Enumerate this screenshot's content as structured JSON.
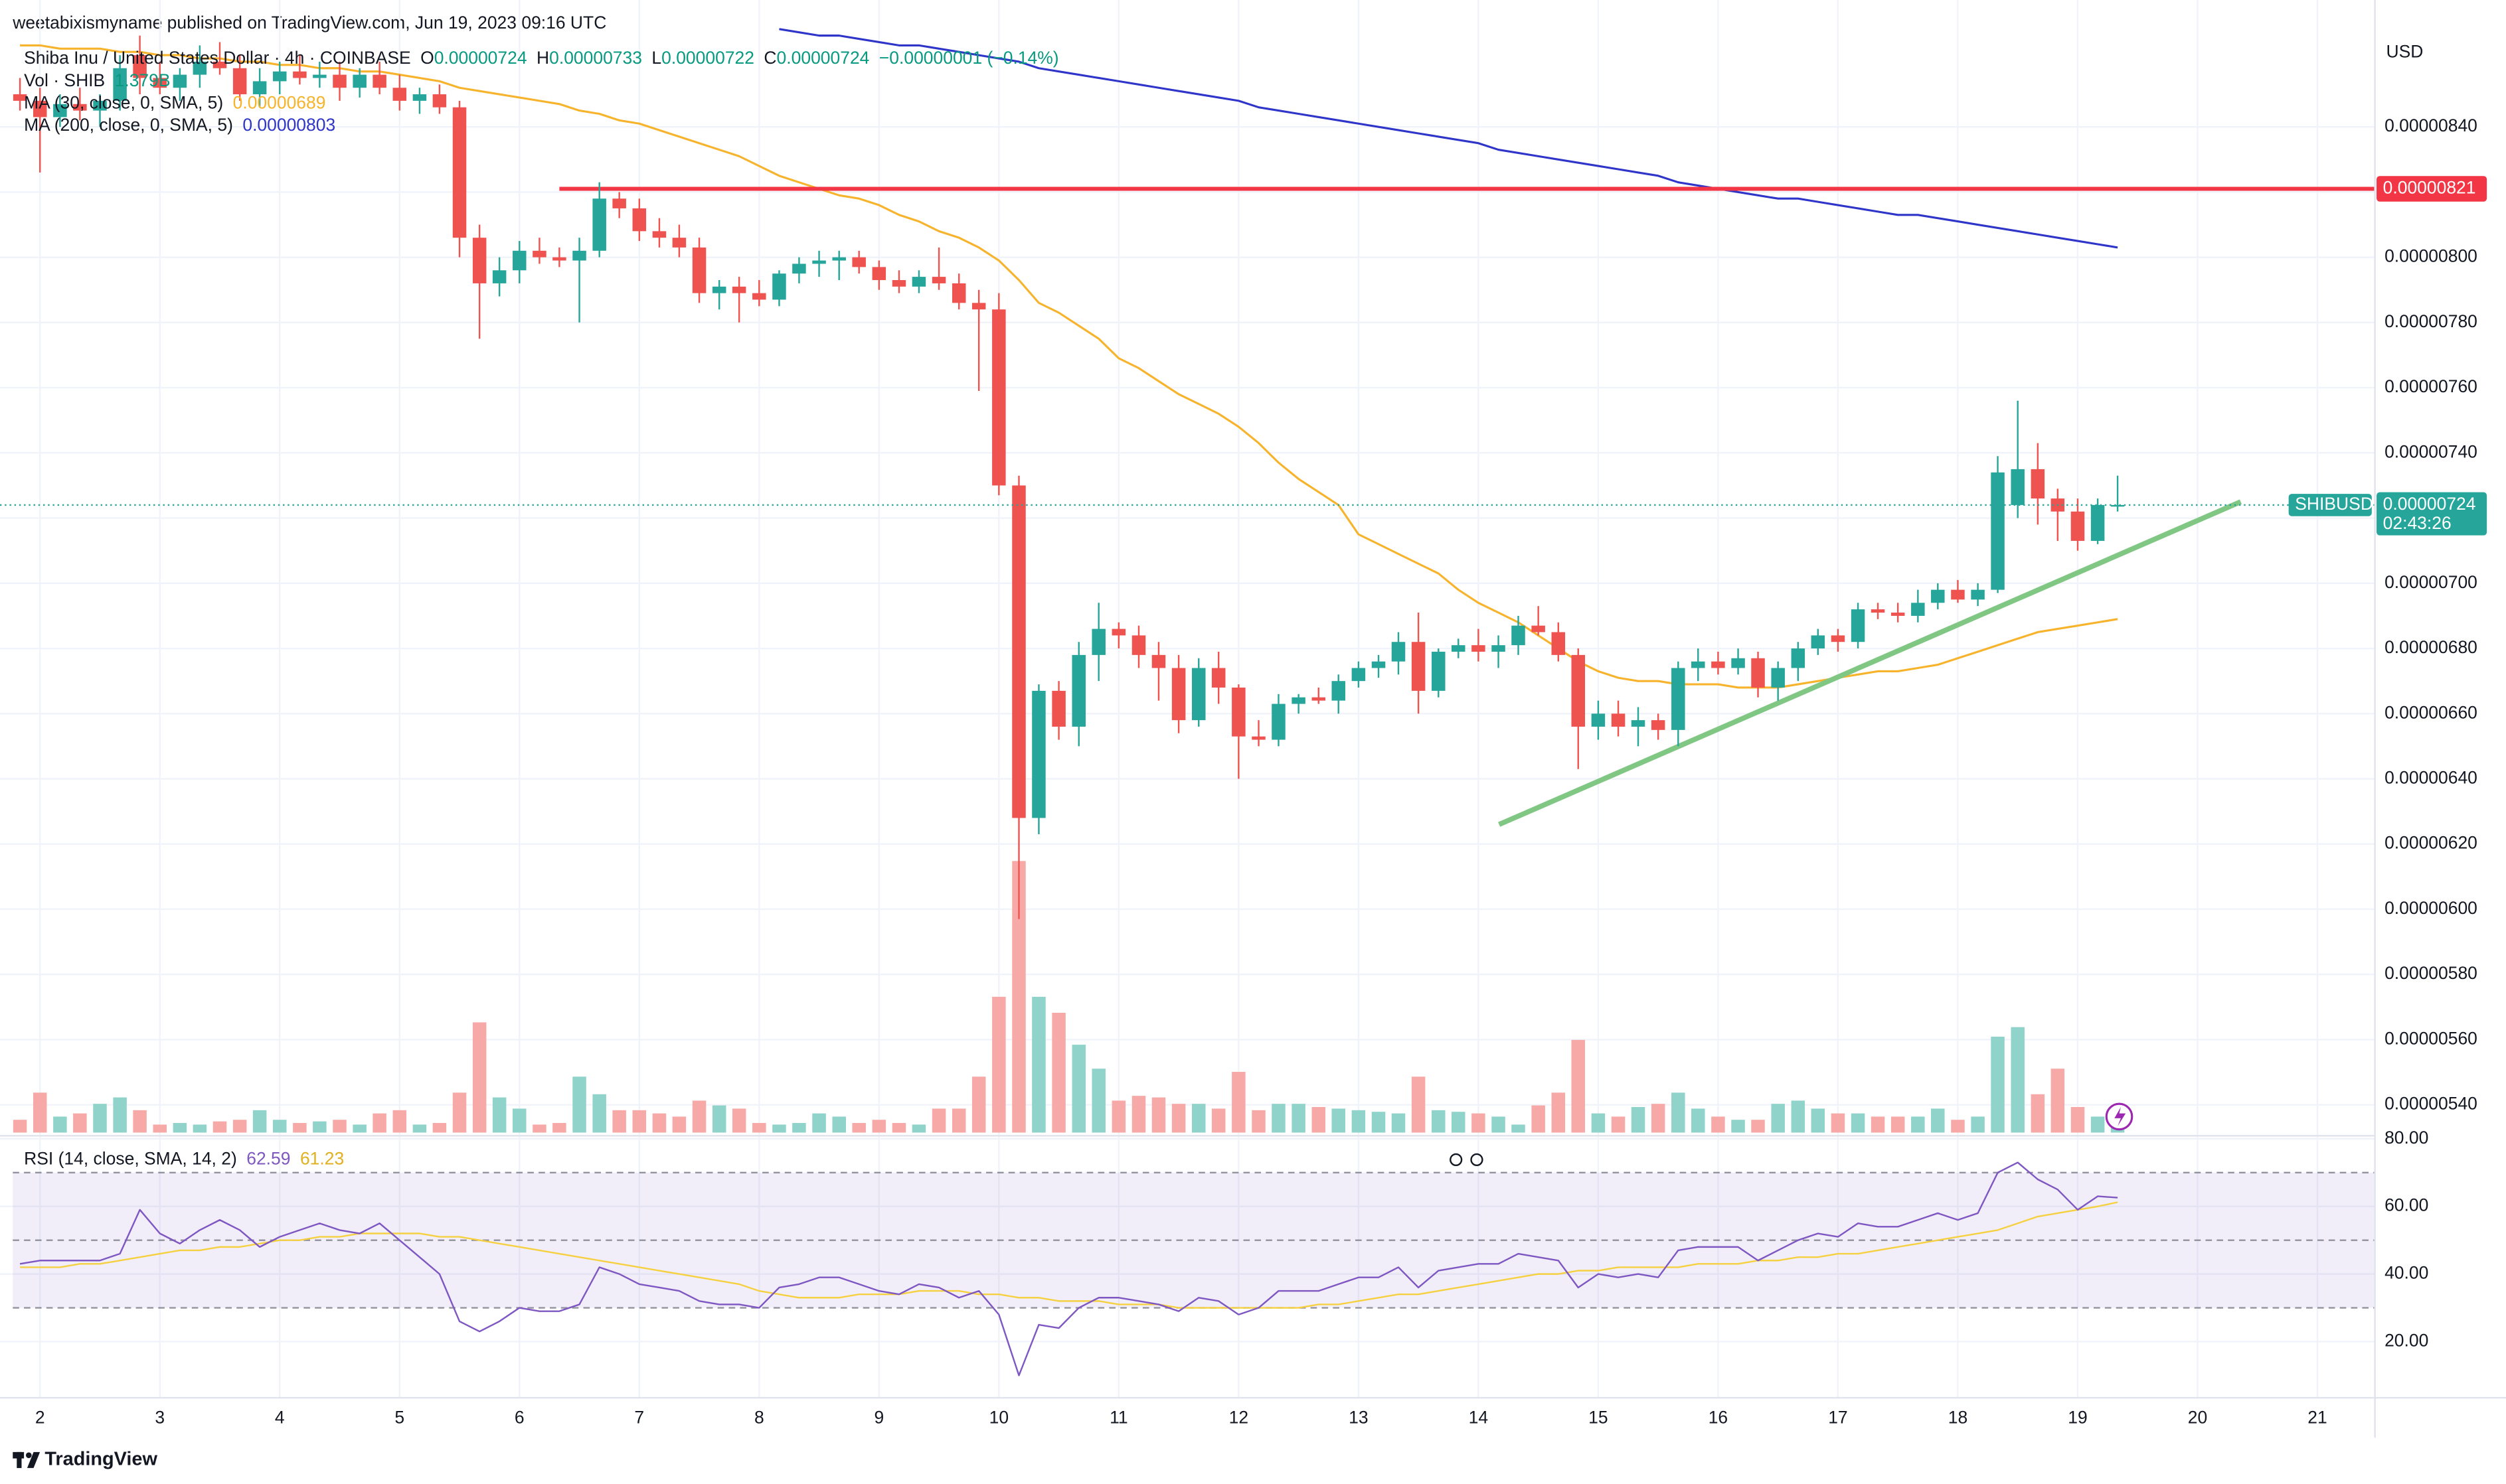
{
  "header": "weetabixismyname published on TradingView.com, Jun 19, 2023 09:16 UTC",
  "footer_brand": "TradingView",
  "chart_data": {
    "type": "candlestick",
    "title": "Shiba Inu / United States Dollar · 4h · COINBASE",
    "legend": {
      "open_label": "O",
      "open": "0.00000724",
      "high_label": "H",
      "high": "0.00000733",
      "low_label": "L",
      "low": "0.00000722",
      "close_label": "C",
      "close": "0.00000724",
      "change": "−0.00000001 (−0.14%)"
    },
    "currency": "USD",
    "up_color": "#26a69a",
    "down_color": "#ef5350",
    "grid": true,
    "xlim": [
      1.773,
      21.48
    ],
    "xticks": [
      2,
      3,
      4,
      5,
      6,
      7,
      8,
      9,
      10,
      11,
      12,
      13,
      14,
      15,
      16,
      17,
      18,
      19,
      20,
      21
    ],
    "x": [
      1.833,
      2,
      2.167,
      2.333,
      2.5,
      2.667,
      2.833,
      3,
      3.167,
      3.333,
      3.5,
      3.667,
      3.833,
      4,
      4.167,
      4.333,
      4.5,
      4.667,
      4.833,
      5,
      5.167,
      5.333,
      5.5,
      5.667,
      5.833,
      6,
      6.167,
      6.333,
      6.5,
      6.667,
      6.833,
      7,
      7.167,
      7.333,
      7.5,
      7.667,
      7.833,
      8,
      8.167,
      8.333,
      8.5,
      8.667,
      8.833,
      9,
      9.167,
      9.333,
      9.5,
      9.667,
      9.833,
      10,
      10.167,
      10.333,
      10.5,
      10.667,
      10.833,
      11,
      11.167,
      11.333,
      11.5,
      11.667,
      11.833,
      12,
      12.167,
      12.333,
      12.5,
      12.667,
      12.833,
      13,
      13.167,
      13.333,
      13.5,
      13.667,
      13.833,
      14,
      14.167,
      14.333,
      14.5,
      14.667,
      14.833,
      15,
      15.167,
      15.333,
      15.5,
      15.667,
      15.833,
      16,
      16.167,
      16.333,
      16.5,
      16.667,
      16.833,
      17,
      17.167,
      17.333,
      17.5,
      17.667,
      17.833,
      18,
      18.167,
      18.333,
      18.5,
      18.667,
      18.833,
      19,
      19.167,
      19.333
    ],
    "open": [
      8.5e-06,
      8.48e-06,
      8.43e-06,
      8.47e-06,
      8.45e-06,
      8.48e-06,
      8.62e-06,
      8.55e-06,
      8.52e-06,
      8.56e-06,
      8.6e-06,
      8.58e-06,
      8.5e-06,
      8.54e-06,
      8.57e-06,
      8.55e-06,
      8.56e-06,
      8.52e-06,
      8.56e-06,
      8.52e-06,
      8.48e-06,
      8.5e-06,
      8.46e-06,
      8.06e-06,
      7.92e-06,
      7.96e-06,
      8.02e-06,
      8e-06,
      7.99e-06,
      8.02e-06,
      8.18e-06,
      8.15e-06,
      8.08e-06,
      8.06e-06,
      8.03e-06,
      7.89e-06,
      7.91e-06,
      7.89e-06,
      7.87e-06,
      7.95e-06,
      7.98e-06,
      7.99e-06,
      8e-06,
      7.97e-06,
      7.93e-06,
      7.91e-06,
      7.94e-06,
      7.92e-06,
      7.86e-06,
      7.84e-06,
      7.3e-06,
      6.28e-06,
      6.67e-06,
      6.56e-06,
      6.78e-06,
      6.86e-06,
      6.84e-06,
      6.78e-06,
      6.74e-06,
      6.58e-06,
      6.74e-06,
      6.68e-06,
      6.53e-06,
      6.52e-06,
      6.63e-06,
      6.65e-06,
      6.64e-06,
      6.7e-06,
      6.74e-06,
      6.76e-06,
      6.82e-06,
      6.67e-06,
      6.79e-06,
      6.81e-06,
      6.79e-06,
      6.81e-06,
      6.87e-06,
      6.85e-06,
      6.78e-06,
      6.56e-06,
      6.6e-06,
      6.56e-06,
      6.58e-06,
      6.55e-06,
      6.74e-06,
      6.76e-06,
      6.74e-06,
      6.77e-06,
      6.68e-06,
      6.74e-06,
      6.8e-06,
      6.84e-06,
      6.82e-06,
      6.92e-06,
      6.91e-06,
      6.9e-06,
      6.94e-06,
      6.98e-06,
      6.95e-06,
      6.98e-06,
      7.24e-06,
      7.35e-06,
      7.26e-06,
      7.22e-06,
      7.13e-06,
      7.24e-06
    ],
    "high": [
      8.55e-06,
      8.52e-06,
      8.5e-06,
      8.52e-06,
      8.5e-06,
      8.62e-06,
      8.68e-06,
      8.6e-06,
      8.58e-06,
      8.65e-06,
      8.66e-06,
      8.62e-06,
      8.58e-06,
      8.6e-06,
      8.62e-06,
      8.6e-06,
      8.6e-06,
      8.58e-06,
      8.6e-06,
      8.56e-06,
      8.52e-06,
      8.53e-06,
      8.48e-06,
      8.1e-06,
      8e-06,
      8.05e-06,
      8.06e-06,
      8.03e-06,
      8.06e-06,
      8.23e-06,
      8.2e-06,
      8.18e-06,
      8.12e-06,
      8.1e-06,
      8.06e-06,
      7.93e-06,
      7.94e-06,
      7.93e-06,
      7.96e-06,
      8e-06,
      8.02e-06,
      8.02e-06,
      8.02e-06,
      7.99e-06,
      7.96e-06,
      7.96e-06,
      8.03e-06,
      7.95e-06,
      7.9e-06,
      7.89e-06,
      7.33e-06,
      6.69e-06,
      6.7e-06,
      6.82e-06,
      6.94e-06,
      6.88e-06,
      6.87e-06,
      6.82e-06,
      6.78e-06,
      6.77e-06,
      6.79e-06,
      6.69e-06,
      6.58e-06,
      6.66e-06,
      6.66e-06,
      6.68e-06,
      6.72e-06,
      6.76e-06,
      6.78e-06,
      6.85e-06,
      6.91e-06,
      6.8e-06,
      6.83e-06,
      6.86e-06,
      6.84e-06,
      6.9e-06,
      6.93e-06,
      6.88e-06,
      6.8e-06,
      6.64e-06,
      6.64e-06,
      6.62e-06,
      6.6e-06,
      6.76e-06,
      6.8e-06,
      6.79e-06,
      6.8e-06,
      6.79e-06,
      6.76e-06,
      6.82e-06,
      6.86e-06,
      6.86e-06,
      6.94e-06,
      6.94e-06,
      6.94e-06,
      6.98e-06,
      7e-06,
      7.01e-06,
      7e-06,
      7.39e-06,
      7.56e-06,
      7.43e-06,
      7.29e-06,
      7.26e-06,
      7.26e-06,
      7.33e-06
    ],
    "low": [
      8.45e-06,
      8.26e-06,
      8.4e-06,
      8.42e-06,
      8.4e-06,
      8.45e-06,
      8.5e-06,
      8.5e-06,
      8.48e-06,
      8.52e-06,
      8.56e-06,
      8.48e-06,
      8.46e-06,
      8.5e-06,
      8.53e-06,
      8.52e-06,
      8.48e-06,
      8.49e-06,
      8.5e-06,
      8.45e-06,
      8.44e-06,
      8.44e-06,
      8e-06,
      7.75e-06,
      7.88e-06,
      7.92e-06,
      7.98e-06,
      7.97e-06,
      7.8e-06,
      8e-06,
      8.12e-06,
      8.05e-06,
      8.03e-06,
      8e-06,
      7.86e-06,
      7.84e-06,
      7.8e-06,
      7.85e-06,
      7.85e-06,
      7.92e-06,
      7.94e-06,
      7.93e-06,
      7.95e-06,
      7.9e-06,
      7.89e-06,
      7.89e-06,
      7.9e-06,
      7.84e-06,
      7.59e-06,
      7.27e-06,
      5.97e-06,
      6.23e-06,
      6.52e-06,
      6.5e-06,
      6.7e-06,
      6.8e-06,
      6.74e-06,
      6.64e-06,
      6.54e-06,
      6.56e-06,
      6.63e-06,
      6.4e-06,
      6.5e-06,
      6.5e-06,
      6.6e-06,
      6.63e-06,
      6.6e-06,
      6.68e-06,
      6.71e-06,
      6.72e-06,
      6.6e-06,
      6.65e-06,
      6.77e-06,
      6.76e-06,
      6.74e-06,
      6.78e-06,
      6.84e-06,
      6.76e-06,
      6.43e-06,
      6.52e-06,
      6.53e-06,
      6.5e-06,
      6.52e-06,
      6.5e-06,
      6.7e-06,
      6.72e-06,
      6.72e-06,
      6.65e-06,
      6.64e-06,
      6.7e-06,
      6.78e-06,
      6.79e-06,
      6.8e-06,
      6.89e-06,
      6.88e-06,
      6.88e-06,
      6.92e-06,
      6.94e-06,
      6.93e-06,
      6.97e-06,
      7.2e-06,
      7.18e-06,
      7.13e-06,
      7.1e-06,
      7.12e-06,
      7.22e-06
    ],
    "close": [
      8.48e-06,
      8.43e-06,
      8.47e-06,
      8.45e-06,
      8.48e-06,
      8.58e-06,
      8.55e-06,
      8.52e-06,
      8.56e-06,
      8.6e-06,
      8.58e-06,
      8.5e-06,
      8.54e-06,
      8.57e-06,
      8.55e-06,
      8.56e-06,
      8.52e-06,
      8.56e-06,
      8.52e-06,
      8.48e-06,
      8.5e-06,
      8.46e-06,
      8.06e-06,
      7.92e-06,
      7.96e-06,
      8.02e-06,
      8e-06,
      7.99e-06,
      8.02e-06,
      8.18e-06,
      8.15e-06,
      8.08e-06,
      8.06e-06,
      8.03e-06,
      7.89e-06,
      7.91e-06,
      7.89e-06,
      7.87e-06,
      7.95e-06,
      7.98e-06,
      7.99e-06,
      8e-06,
      7.97e-06,
      7.93e-06,
      7.91e-06,
      7.94e-06,
      7.92e-06,
      7.86e-06,
      7.84e-06,
      7.3e-06,
      6.28e-06,
      6.67e-06,
      6.56e-06,
      6.78e-06,
      6.86e-06,
      6.84e-06,
      6.78e-06,
      6.74e-06,
      6.58e-06,
      6.74e-06,
      6.68e-06,
      6.53e-06,
      6.52e-06,
      6.63e-06,
      6.65e-06,
      6.64e-06,
      6.7e-06,
      6.74e-06,
      6.76e-06,
      6.82e-06,
      6.67e-06,
      6.79e-06,
      6.81e-06,
      6.79e-06,
      6.81e-06,
      6.87e-06,
      6.85e-06,
      6.78e-06,
      6.56e-06,
      6.6e-06,
      6.56e-06,
      6.58e-06,
      6.55e-06,
      6.74e-06,
      6.76e-06,
      6.74e-06,
      6.77e-06,
      6.68e-06,
      6.74e-06,
      6.8e-06,
      6.84e-06,
      6.82e-06,
      6.92e-06,
      6.91e-06,
      6.9e-06,
      6.94e-06,
      6.98e-06,
      6.95e-06,
      6.98e-06,
      7.34e-06,
      7.35e-06,
      7.26e-06,
      7.22e-06,
      7.13e-06,
      7.24e-06,
      7.24e-06
    ],
    "ylim": [
      5.31e-06,
      8.75e-06
    ],
    "yticks": [
      {
        "value": 5.4e-06,
        "label": "0.00000540"
      },
      {
        "value": 5.6e-06,
        "label": "0.00000560"
      },
      {
        "value": 5.8e-06,
        "label": "0.00000580"
      },
      {
        "value": 6e-06,
        "label": "0.00000600"
      },
      {
        "value": 6.2e-06,
        "label": "0.00000620"
      },
      {
        "value": 6.4e-06,
        "label": "0.00000640"
      },
      {
        "value": 6.6e-06,
        "label": "0.00000660"
      },
      {
        "value": 6.8e-06,
        "label": "0.00000680"
      },
      {
        "value": 7e-06,
        "label": "0.00000700"
      },
      {
        "value": 7.2e-06,
        "label": "0.00000720"
      },
      {
        "value": 7.4e-06,
        "label": "0.00000740"
      },
      {
        "value": 7.6e-06,
        "label": "0.00000760"
      },
      {
        "value": 7.8e-06,
        "label": "0.00000780"
      },
      {
        "value": 8e-06,
        "label": "0.00000800"
      },
      {
        "value": 8.2e-06,
        "label": "0.00000820"
      },
      {
        "value": 8.4e-06,
        "label": "0.00000840"
      }
    ],
    "last_price_label": {
      "symbol": "SHIBUSD",
      "price": "0.00000724",
      "countdown": "02:43:26"
    },
    "volume": {
      "name": "Vol · SHIB",
      "value_label": "1.379B",
      "up_color": "#8fd3cb",
      "down_color": "#f7a9a7",
      "values": [
        1.12,
        3.5,
        1.4,
        1.68,
        2.52,
        3.08,
        1.96,
        0.7,
        0.84,
        0.7,
        0.98,
        1.12,
        1.96,
        1.12,
        0.84,
        0.98,
        1.12,
        0.7,
        1.68,
        1.96,
        0.7,
        0.84,
        3.5,
        9.66,
        3.08,
        2.1,
        0.7,
        0.84,
        4.9,
        3.36,
        1.96,
        1.96,
        1.68,
        1.4,
        2.8,
        2.38,
        2.1,
        0.84,
        0.7,
        0.84,
        1.68,
        1.4,
        0.84,
        1.12,
        0.84,
        0.7,
        2.1,
        2.1,
        4.9,
        11.9,
        23.8,
        11.9,
        10.5,
        7.7,
        5.6,
        2.8,
        3.22,
        3.08,
        2.52,
        2.52,
        2.1,
        5.32,
        1.96,
        2.52,
        2.52,
        2.24,
        2.1,
        1.96,
        1.82,
        1.68,
        4.9,
        1.96,
        1.82,
        1.68,
        1.4,
        0.7,
        2.38,
        3.5,
        8.12,
        1.68,
        1.4,
        2.24,
        2.52,
        3.5,
        2.1,
        1.4,
        1.12,
        1.12,
        2.52,
        2.8,
        2.1,
        1.68,
        1.68,
        1.4,
        1.4,
        1.4,
        2.1,
        1.12,
        1.4,
        8.4,
        9.24,
        3.36,
        5.6,
        2.24,
        1.4,
        1.379
      ]
    },
    "moving_averages": [
      {
        "name": "MA (30, close, 0, SMA, 5)",
        "color": "#f7b32b",
        "value_label": "0.00000689",
        "values": [
          8.65e-06,
          8.65e-06,
          8.64e-06,
          8.64e-06,
          8.64e-06,
          8.63e-06,
          8.63e-06,
          8.62e-06,
          8.62e-06,
          8.61e-06,
          8.61e-06,
          8.6e-06,
          8.6e-06,
          8.59e-06,
          8.59e-06,
          8.58e-06,
          8.58e-06,
          8.57e-06,
          8.57e-06,
          8.56e-06,
          8.55e-06,
          8.54e-06,
          8.52e-06,
          8.51e-06,
          8.5e-06,
          8.49e-06,
          8.48e-06,
          8.47e-06,
          8.45e-06,
          8.44e-06,
          8.42e-06,
          8.41e-06,
          8.39e-06,
          8.37e-06,
          8.35e-06,
          8.33e-06,
          8.31e-06,
          8.28e-06,
          8.25e-06,
          8.23e-06,
          8.21e-06,
          8.19e-06,
          8.18e-06,
          8.16e-06,
          8.13e-06,
          8.11e-06,
          8.08e-06,
          8.06e-06,
          8.03e-06,
          7.99e-06,
          7.93e-06,
          7.86e-06,
          7.83e-06,
          7.79e-06,
          7.75e-06,
          7.69e-06,
          7.66e-06,
          7.62e-06,
          7.58e-06,
          7.55e-06,
          7.52e-06,
          7.48e-06,
          7.43e-06,
          7.37e-06,
          7.32e-06,
          7.28e-06,
          7.24e-06,
          7.15e-06,
          7.12e-06,
          7.09e-06,
          7.06e-06,
          7.03e-06,
          6.98e-06,
          6.94e-06,
          6.91e-06,
          6.88e-06,
          6.84e-06,
          6.8e-06,
          6.76e-06,
          6.73e-06,
          6.71e-06,
          6.7e-06,
          6.7e-06,
          6.69e-06,
          6.69e-06,
          6.69e-06,
          6.68e-06,
          6.68e-06,
          6.68e-06,
          6.69e-06,
          6.7e-06,
          6.71e-06,
          6.72e-06,
          6.73e-06,
          6.73e-06,
          6.74e-06,
          6.75e-06,
          6.77e-06,
          6.79e-06,
          6.81e-06,
          6.83e-06,
          6.85e-06,
          6.86e-06,
          6.87e-06,
          6.88e-06,
          6.89e-06
        ]
      },
      {
        "name": "MA (200, close, 0, SMA, 5)",
        "color": "#2f35c9",
        "value_label": "0.00000803",
        "values": [
          null,
          null,
          null,
          null,
          null,
          null,
          null,
          null,
          null,
          null,
          null,
          null,
          null,
          null,
          null,
          null,
          null,
          null,
          null,
          null,
          null,
          null,
          null,
          null,
          null,
          null,
          null,
          null,
          null,
          null,
          null,
          null,
          null,
          null,
          null,
          null,
          null,
          null,
          8.7e-06,
          8.69e-06,
          8.68e-06,
          8.68e-06,
          8.67e-06,
          8.66e-06,
          8.65e-06,
          8.65e-06,
          8.64e-06,
          8.63e-06,
          8.62e-06,
          8.61e-06,
          8.6e-06,
          8.58e-06,
          8.57e-06,
          8.56e-06,
          8.55e-06,
          8.54e-06,
          8.53e-06,
          8.52e-06,
          8.51e-06,
          8.5e-06,
          8.49e-06,
          8.48e-06,
          8.46e-06,
          8.45e-06,
          8.44e-06,
          8.43e-06,
          8.42e-06,
          8.41e-06,
          8.4e-06,
          8.39e-06,
          8.38e-06,
          8.37e-06,
          8.36e-06,
          8.35e-06,
          8.33e-06,
          8.32e-06,
          8.31e-06,
          8.3e-06,
          8.29e-06,
          8.28e-06,
          8.27e-06,
          8.26e-06,
          8.25e-06,
          8.23e-06,
          8.22e-06,
          8.21e-06,
          8.2e-06,
          8.19e-06,
          8.18e-06,
          8.18e-06,
          8.17e-06,
          8.16e-06,
          8.15e-06,
          8.14e-06,
          8.13e-06,
          8.13e-06,
          8.12e-06,
          8.11e-06,
          8.1e-06,
          8.09e-06,
          8.08e-06,
          8.07e-06,
          8.06e-06,
          8.05e-06,
          8.04e-06,
          8.03e-06
        ]
      }
    ],
    "drawings": [
      {
        "type": "hline",
        "value": 8.21e-06,
        "label": "0.00000821",
        "x_start": 6.333,
        "color": "#f23645"
      },
      {
        "type": "trend",
        "x": [
          14.173,
          20.36
        ],
        "values": [
          6.26e-06,
          7.25e-06
        ],
        "color": "#81c784"
      }
    ],
    "rsi": {
      "name": "RSI (14, close, SMA, 14, 2)",
      "color": "#7e57c2",
      "ma_color": "#f5d142",
      "ylim": [
        3.4,
        80.9
      ],
      "yticks": [
        {
          "value": 20,
          "label": "20.00"
        },
        {
          "value": 40,
          "label": "40.00"
        },
        {
          "value": 60,
          "label": "60.00"
        },
        {
          "value": 80,
          "label": "80.00"
        }
      ],
      "bands": [
        30,
        50,
        70
      ],
      "values": [
        43,
        44,
        44,
        44,
        44,
        46,
        59,
        52,
        49,
        53,
        56,
        53,
        48,
        51,
        53,
        55,
        53,
        52,
        55,
        50,
        45,
        40,
        26,
        23,
        26,
        30,
        29,
        29,
        31,
        42,
        40,
        37,
        36,
        35,
        32,
        31,
        31,
        30,
        36,
        37,
        39,
        39,
        37,
        35,
        34,
        37,
        36,
        33,
        35,
        28,
        10,
        25,
        24,
        30,
        33,
        33,
        32,
        31,
        29,
        33,
        32,
        28,
        30,
        35,
        35,
        35,
        37,
        39,
        39,
        42,
        36,
        41,
        42,
        43,
        43,
        46,
        45,
        44,
        36,
        40,
        39,
        40,
        39,
        47,
        48,
        48,
        48,
        44,
        47,
        50,
        52,
        51,
        55,
        54,
        54,
        56,
        58,
        56,
        58,
        70,
        73,
        68,
        65,
        59,
        63,
        62.59
      ],
      "ma_values": [
        42,
        42,
        42,
        43,
        43,
        44,
        45,
        46,
        47,
        47,
        48,
        48,
        49,
        50,
        50,
        51,
        51,
        52,
        52,
        52,
        52,
        51,
        51,
        50,
        49,
        48,
        47,
        46,
        45,
        44,
        43,
        42,
        41,
        40,
        39,
        38,
        37,
        35,
        34,
        33,
        33,
        33,
        34,
        34,
        34,
        35,
        35,
        35,
        34,
        34,
        33,
        33,
        32,
        32,
        32,
        31,
        31,
        31,
        30,
        30,
        30,
        30,
        30,
        30,
        30,
        31,
        31,
        32,
        33,
        34,
        34,
        35,
        36,
        37,
        38,
        39,
        40,
        40,
        41,
        41,
        42,
        42,
        42,
        42,
        43,
        43,
        43,
        44,
        44,
        45,
        45,
        46,
        46,
        47,
        48,
        49,
        50,
        51,
        52,
        53,
        55,
        57,
        58,
        59,
        60,
        61.23
      ]
    }
  }
}
